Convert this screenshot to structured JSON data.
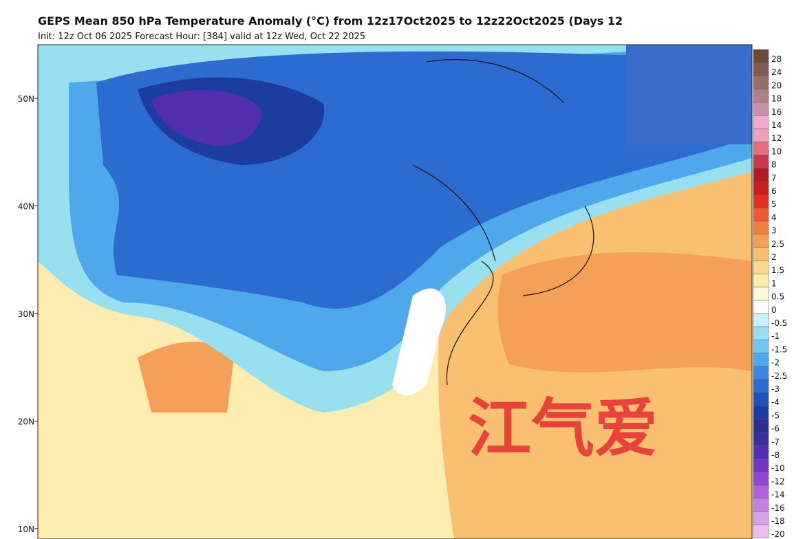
{
  "header": {
    "title": "GEPS Mean 850 hPa Temperature Anomaly (°C) from 12z17Oct2025 to 12z22Oct2025 (Days 12",
    "subtitle": "Init: 12z Oct 06 2025   Forecast Hour: [384]   valid at 12z Wed, Oct 22 2025"
  },
  "map": {
    "latitude_labels": [
      "50N",
      "40N",
      "30N",
      "20N",
      "10N"
    ],
    "watermark": "江气爱"
  },
  "colorbar": {
    "levels": [
      28,
      24,
      20,
      18,
      16,
      14,
      12,
      10,
      8,
      7,
      6,
      5,
      4,
      3,
      2.5,
      2,
      1.5,
      1,
      0.5,
      0,
      -0.5,
      -1,
      -1.5,
      -2,
      -2.5,
      -3,
      -4,
      -5,
      -6,
      -7,
      -8,
      -10,
      -12,
      -14,
      -16,
      -18,
      -20
    ],
    "colors": [
      "#6b4a3a",
      "#7f5a4e",
      "#9a6e6a",
      "#b0808a",
      "#c890a8",
      "#f0a8d0",
      "#f0a0b8",
      "#e07080",
      "#c83848",
      "#b01c24",
      "#c81e1e",
      "#e03020",
      "#ec5a30",
      "#f08040",
      "#f4a058",
      "#f8c070",
      "#fad890",
      "#fcecb0",
      "#fef8d8",
      "#ffffff",
      "#c8f0f8",
      "#98e0f0",
      "#70c8f0",
      "#50a8ec",
      "#3c88e0",
      "#2c6cd0",
      "#2050b8",
      "#1c3ca0",
      "#283090",
      "#3a2ea0",
      "#5030b0",
      "#7038c0",
      "#9048d0",
      "#b060d8",
      "#c880e0",
      "#d8a0e8",
      "#e8c0f0"
    ]
  }
}
